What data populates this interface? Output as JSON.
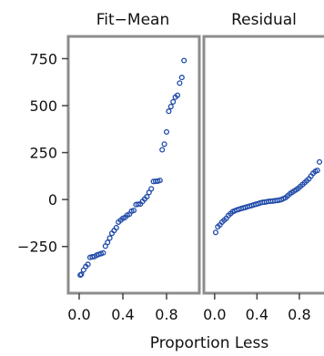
{
  "xlabel": "Proportion Less",
  "colors": {
    "marker": "#1f4aa8",
    "frame": "#8c8c8c"
  },
  "chart_data": [
    {
      "type": "scatter",
      "panel_title": "Fit−Mean",
      "xlim": [
        -0.05,
        1.05
      ],
      "ylim": [
        -450,
        820
      ],
      "x_ticks": [
        0.0,
        0.4,
        0.8
      ],
      "x_tick_labels": [
        "0.0",
        "0.4",
        "0.8"
      ],
      "y_ticks": [
        750,
        500,
        250,
        0,
        -250
      ],
      "y_tick_labels": [
        "750",
        "500",
        "250",
        "0",
        "−250"
      ],
      "points": [
        [
          0.01,
          -402
        ],
        [
          0.02,
          -398
        ],
        [
          0.04,
          -375
        ],
        [
          0.06,
          -357
        ],
        [
          0.08,
          -345
        ],
        [
          0.1,
          -308
        ],
        [
          0.12,
          -305
        ],
        [
          0.14,
          -304
        ],
        [
          0.16,
          -296
        ],
        [
          0.18,
          -292
        ],
        [
          0.2,
          -288
        ],
        [
          0.22,
          -284
        ],
        [
          0.24,
          -248
        ],
        [
          0.26,
          -228
        ],
        [
          0.28,
          -205
        ],
        [
          0.3,
          -180
        ],
        [
          0.32,
          -165
        ],
        [
          0.34,
          -150
        ],
        [
          0.36,
          -120
        ],
        [
          0.38,
          -110
        ],
        [
          0.4,
          -100
        ],
        [
          0.42,
          -95
        ],
        [
          0.44,
          -83
        ],
        [
          0.46,
          -78
        ],
        [
          0.48,
          -62
        ],
        [
          0.5,
          -58
        ],
        [
          0.52,
          -27
        ],
        [
          0.54,
          -25
        ],
        [
          0.56,
          -24
        ],
        [
          0.58,
          -10
        ],
        [
          0.6,
          3
        ],
        [
          0.62,
          15
        ],
        [
          0.64,
          38
        ],
        [
          0.66,
          57
        ],
        [
          0.68,
          96
        ],
        [
          0.7,
          97
        ],
        [
          0.72,
          98
        ],
        [
          0.74,
          102
        ],
        [
          0.76,
          265
        ],
        [
          0.78,
          295
        ],
        [
          0.8,
          360
        ],
        [
          0.82,
          470
        ],
        [
          0.84,
          495
        ],
        [
          0.86,
          520
        ],
        [
          0.88,
          545
        ],
        [
          0.9,
          555
        ],
        [
          0.92,
          620
        ],
        [
          0.94,
          650
        ],
        [
          0.96,
          740
        ]
      ]
    },
    {
      "type": "scatter",
      "panel_title": "Residual",
      "xlim": [
        -0.05,
        1.05
      ],
      "ylim": [
        -450,
        820
      ],
      "x_ticks": [
        0.0,
        0.4,
        0.8
      ],
      "x_tick_labels": [
        "0.0",
        "0.4",
        "0.8"
      ],
      "points": [
        [
          0.01,
          -175
        ],
        [
          0.03,
          -145
        ],
        [
          0.05,
          -135
        ],
        [
          0.07,
          -120
        ],
        [
          0.09,
          -110
        ],
        [
          0.11,
          -100
        ],
        [
          0.13,
          -85
        ],
        [
          0.15,
          -75
        ],
        [
          0.17,
          -65
        ],
        [
          0.19,
          -60
        ],
        [
          0.21,
          -55
        ],
        [
          0.23,
          -52
        ],
        [
          0.25,
          -48
        ],
        [
          0.27,
          -45
        ],
        [
          0.29,
          -42
        ],
        [
          0.31,
          -38
        ],
        [
          0.33,
          -35
        ],
        [
          0.35,
          -32
        ],
        [
          0.37,
          -28
        ],
        [
          0.39,
          -25
        ],
        [
          0.41,
          -22
        ],
        [
          0.43,
          -18
        ],
        [
          0.45,
          -15
        ],
        [
          0.47,
          -14
        ],
        [
          0.49,
          -12
        ],
        [
          0.51,
          -10
        ],
        [
          0.53,
          -9
        ],
        [
          0.55,
          -8
        ],
        [
          0.57,
          -6
        ],
        [
          0.59,
          -5
        ],
        [
          0.61,
          -3
        ],
        [
          0.63,
          0
        ],
        [
          0.65,
          5
        ],
        [
          0.67,
          10
        ],
        [
          0.69,
          20
        ],
        [
          0.71,
          30
        ],
        [
          0.73,
          38
        ],
        [
          0.75,
          45
        ],
        [
          0.77,
          52
        ],
        [
          0.79,
          60
        ],
        [
          0.81,
          70
        ],
        [
          0.83,
          80
        ],
        [
          0.85,
          90
        ],
        [
          0.87,
          100
        ],
        [
          0.89,
          110
        ],
        [
          0.91,
          125
        ],
        [
          0.93,
          140
        ],
        [
          0.95,
          150
        ],
        [
          0.97,
          155
        ],
        [
          0.99,
          200
        ]
      ]
    }
  ]
}
